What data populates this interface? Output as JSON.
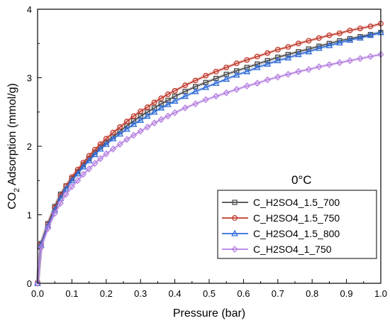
{
  "chart_data": {
    "type": "line",
    "xlabel": "Pressure (bar)",
    "ylabel_parts": [
      "CO",
      "2",
      " Adsorption (mmol/g)"
    ],
    "xlim": [
      0.0,
      1.0
    ],
    "ylim": [
      0,
      4
    ],
    "xticks": [
      0.0,
      0.1,
      0.2,
      0.3,
      0.4,
      0.5,
      0.6,
      0.7,
      0.8,
      0.9,
      1.0
    ],
    "xtick_labels": [
      "0.0",
      "0.1",
      "0.2",
      "0.3",
      "0.4",
      "0.5",
      "0.6",
      "0.7",
      "0.8",
      "0.9",
      "1.0"
    ],
    "yticks": [
      0,
      1,
      2,
      3,
      4
    ],
    "ytick_labels": [
      "0",
      "1",
      "2",
      "3",
      "4"
    ],
    "grid": false,
    "legend_position": "lower-right",
    "annotation": "0°C",
    "series": [
      {
        "name": "C_H2SO4_1.5_700",
        "color": "#4a4a4a",
        "marker": "square",
        "x": [
          0.0,
          0.01,
          0.03,
          0.05,
          0.067,
          0.083,
          0.1,
          0.117,
          0.133,
          0.15,
          0.167,
          0.183,
          0.2,
          0.22,
          0.24,
          0.26,
          0.28,
          0.3,
          0.32,
          0.34,
          0.36,
          0.38,
          0.4,
          0.43,
          0.46,
          0.49,
          0.52,
          0.55,
          0.58,
          0.61,
          0.64,
          0.67,
          0.7,
          0.73,
          0.76,
          0.79,
          0.82,
          0.85,
          0.88,
          0.91,
          0.94,
          0.97,
          1.0
        ],
        "y": [
          0.0,
          0.58,
          0.87,
          1.12,
          1.3,
          1.42,
          1.53,
          1.63,
          1.73,
          1.82,
          1.91,
          1.99,
          2.06,
          2.14,
          2.22,
          2.3,
          2.37,
          2.44,
          2.5,
          2.56,
          2.62,
          2.67,
          2.73,
          2.8,
          2.87,
          2.93,
          2.99,
          3.05,
          3.1,
          3.15,
          3.2,
          3.25,
          3.3,
          3.34,
          3.38,
          3.42,
          3.46,
          3.5,
          3.54,
          3.57,
          3.6,
          3.63,
          3.66
        ]
      },
      {
        "name": "C_H2SO4_1.5_750",
        "color": "#c0392b",
        "marker": "circle",
        "x": [
          0.0,
          0.01,
          0.03,
          0.05,
          0.067,
          0.083,
          0.1,
          0.117,
          0.133,
          0.15,
          0.167,
          0.183,
          0.2,
          0.22,
          0.24,
          0.26,
          0.28,
          0.3,
          0.32,
          0.34,
          0.36,
          0.38,
          0.4,
          0.43,
          0.46,
          0.49,
          0.52,
          0.55,
          0.58,
          0.61,
          0.64,
          0.67,
          0.7,
          0.73,
          0.76,
          0.79,
          0.82,
          0.85,
          0.88,
          0.91,
          0.94,
          0.97,
          1.0
        ],
        "y": [
          0.0,
          0.57,
          0.86,
          1.1,
          1.28,
          1.42,
          1.55,
          1.66,
          1.76,
          1.86,
          1.95,
          2.03,
          2.11,
          2.2,
          2.28,
          2.36,
          2.44,
          2.51,
          2.57,
          2.64,
          2.7,
          2.76,
          2.81,
          2.89,
          2.96,
          3.03,
          3.09,
          3.15,
          3.21,
          3.26,
          3.31,
          3.36,
          3.41,
          3.45,
          3.5,
          3.54,
          3.58,
          3.62,
          3.65,
          3.69,
          3.72,
          3.75,
          3.79
        ]
      },
      {
        "name": "C_H2SO4_1.5_800",
        "color": "#2e6bd8",
        "marker": "triangle",
        "x": [
          0.0,
          0.01,
          0.03,
          0.05,
          0.067,
          0.083,
          0.1,
          0.117,
          0.133,
          0.15,
          0.167,
          0.183,
          0.2,
          0.22,
          0.24,
          0.26,
          0.28,
          0.3,
          0.32,
          0.34,
          0.36,
          0.38,
          0.4,
          0.43,
          0.46,
          0.49,
          0.52,
          0.55,
          0.58,
          0.61,
          0.64,
          0.67,
          0.7,
          0.73,
          0.76,
          0.79,
          0.82,
          0.85,
          0.88,
          0.91,
          0.94,
          0.97,
          1.0
        ],
        "y": [
          0.0,
          0.56,
          0.84,
          1.07,
          1.24,
          1.38,
          1.5,
          1.6,
          1.7,
          1.79,
          1.88,
          1.96,
          2.03,
          2.11,
          2.18,
          2.25,
          2.32,
          2.38,
          2.44,
          2.5,
          2.56,
          2.61,
          2.66,
          2.73,
          2.8,
          2.86,
          2.92,
          2.98,
          3.04,
          3.09,
          3.15,
          3.2,
          3.25,
          3.29,
          3.34,
          3.38,
          3.43,
          3.47,
          3.51,
          3.55,
          3.58,
          3.62,
          3.66
        ]
      },
      {
        "name": "C_H2SO4_1_750",
        "color": "#b57fe0",
        "marker": "diamond",
        "x": [
          0.0,
          0.01,
          0.03,
          0.05,
          0.067,
          0.083,
          0.1,
          0.117,
          0.133,
          0.15,
          0.167,
          0.183,
          0.2,
          0.22,
          0.24,
          0.26,
          0.28,
          0.3,
          0.32,
          0.34,
          0.36,
          0.38,
          0.4,
          0.43,
          0.46,
          0.49,
          0.52,
          0.55,
          0.58,
          0.61,
          0.64,
          0.67,
          0.7,
          0.73,
          0.76,
          0.79,
          0.82,
          0.85,
          0.88,
          0.91,
          0.94,
          0.97,
          1.0
        ],
        "y": [
          0.0,
          0.52,
          0.8,
          1.02,
          1.17,
          1.3,
          1.41,
          1.5,
          1.59,
          1.67,
          1.75,
          1.82,
          1.89,
          1.96,
          2.03,
          2.1,
          2.16,
          2.22,
          2.28,
          2.34,
          2.39,
          2.44,
          2.49,
          2.56,
          2.62,
          2.68,
          2.73,
          2.78,
          2.83,
          2.88,
          2.92,
          2.97,
          3.01,
          3.05,
          3.09,
          3.12,
          3.16,
          3.19,
          3.22,
          3.25,
          3.28,
          3.31,
          3.34
        ]
      }
    ]
  }
}
